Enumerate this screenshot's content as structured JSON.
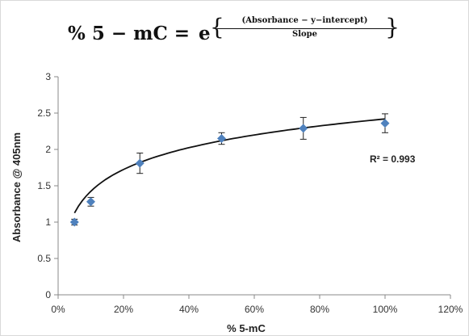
{
  "formula": {
    "lhs": "% 5 − mC =",
    "base": "e",
    "numerator": "(Absorbance − y−intercept)",
    "denominator": "Slope",
    "brace_left": "{",
    "brace_right": "}"
  },
  "chart_data": {
    "type": "scatter",
    "xlabel": "% 5-mC",
    "ylabel": "Absorbance @ 405nm",
    "xlim": [
      0,
      120
    ],
    "ylim": [
      0,
      3
    ],
    "x_ticks": [
      "0%",
      "20%",
      "40%",
      "60%",
      "80%",
      "100%",
      "120%"
    ],
    "y_ticks": [
      "0",
      "0.5",
      "1",
      "1.5",
      "2",
      "2.5",
      "3"
    ],
    "grid": false,
    "marker_color": "#4f81bd",
    "points": [
      {
        "x": 5,
        "y": 1.0,
        "err": 0.04
      },
      {
        "x": 10,
        "y": 1.28,
        "err": 0.06
      },
      {
        "x": 25,
        "y": 1.81,
        "err": 0.14
      },
      {
        "x": 50,
        "y": 2.15,
        "err": 0.08
      },
      {
        "x": 75,
        "y": 2.29,
        "err": 0.15
      },
      {
        "x": 100,
        "y": 2.36,
        "err": 0.13
      }
    ],
    "trendline": {
      "type": "logarithmic",
      "intercept": 0.43,
      "slope": 0.432,
      "x_from": 5,
      "x_to": 100
    },
    "annotation": "R² = 0.993"
  }
}
